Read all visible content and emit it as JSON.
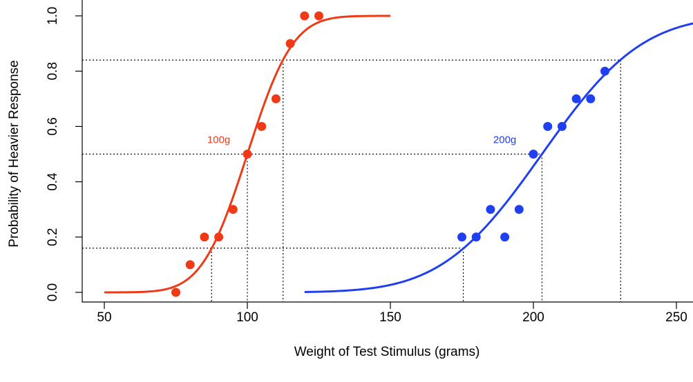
{
  "chart_data": {
    "type": "scatter",
    "xlabel": "Weight of Test Stimulus (grams)",
    "ylabel": "Probability of Heavier Response",
    "xlim": [
      42,
      258
    ],
    "ylim": [
      -0.03,
      1.04
    ],
    "x_ticks": [
      50,
      100,
      150,
      200,
      250
    ],
    "y_ticks": [
      0.0,
      0.2,
      0.4,
      0.6,
      0.8,
      1.0
    ],
    "x_tick_labels": [
      "50",
      "100",
      "150",
      "200",
      "250"
    ],
    "y_tick_labels": [
      "0.0",
      "0.2",
      "0.4",
      "0.6",
      "0.8",
      "1.0"
    ],
    "grid": false,
    "series": [
      {
        "name": "100g",
        "color": "#f03a17",
        "points": [
          {
            "x": 75,
            "y": 0.0
          },
          {
            "x": 80,
            "y": 0.1
          },
          {
            "x": 85,
            "y": 0.2
          },
          {
            "x": 90,
            "y": 0.2
          },
          {
            "x": 95,
            "y": 0.3
          },
          {
            "x": 100,
            "y": 0.5
          },
          {
            "x": 105,
            "y": 0.6
          },
          {
            "x": 110,
            "y": 0.7
          },
          {
            "x": 115,
            "y": 0.9
          },
          {
            "x": 120,
            "y": 1.0
          },
          {
            "x": 125,
            "y": 1.0
          }
        ],
        "fit": {
          "model": "cumulative-normal",
          "mean": 100,
          "sd": 12.5,
          "x_range": [
            50,
            150
          ]
        },
        "label_at": {
          "x": 90,
          "y": 0.55
        }
      },
      {
        "name": "200g",
        "color": "#1f3ff0",
        "points": [
          {
            "x": 175,
            "y": 0.2
          },
          {
            "x": 180,
            "y": 0.2
          },
          {
            "x": 185,
            "y": 0.3
          },
          {
            "x": 190,
            "y": 0.2
          },
          {
            "x": 195,
            "y": 0.3
          },
          {
            "x": 200,
            "y": 0.5
          },
          {
            "x": 205,
            "y": 0.6
          },
          {
            "x": 210,
            "y": 0.6
          },
          {
            "x": 215,
            "y": 0.7
          },
          {
            "x": 220,
            "y": 0.7
          },
          {
            "x": 225,
            "y": 0.8
          }
        ],
        "fit": {
          "model": "cumulative-normal",
          "mean": 203,
          "sd": 27.5,
          "x_range": [
            120,
            270
          ]
        },
        "label_at": {
          "x": 190,
          "y": 0.55
        }
      }
    ],
    "reference_lines": {
      "horizontal": [
        {
          "y": 0.84,
          "x_end": 230
        },
        {
          "y": 0.5,
          "x_end": 203
        },
        {
          "y": 0.16,
          "x_end": 175.5
        }
      ],
      "vertical": [
        {
          "x": 87.5,
          "y_top": 0.16
        },
        {
          "x": 100,
          "y_top": 0.5
        },
        {
          "x": 112.5,
          "y_top": 0.84
        },
        {
          "x": 175.5,
          "y_top": 0.16
        },
        {
          "x": 203,
          "y_top": 0.5
        },
        {
          "x": 230.5,
          "y_top": 0.84
        }
      ]
    }
  }
}
